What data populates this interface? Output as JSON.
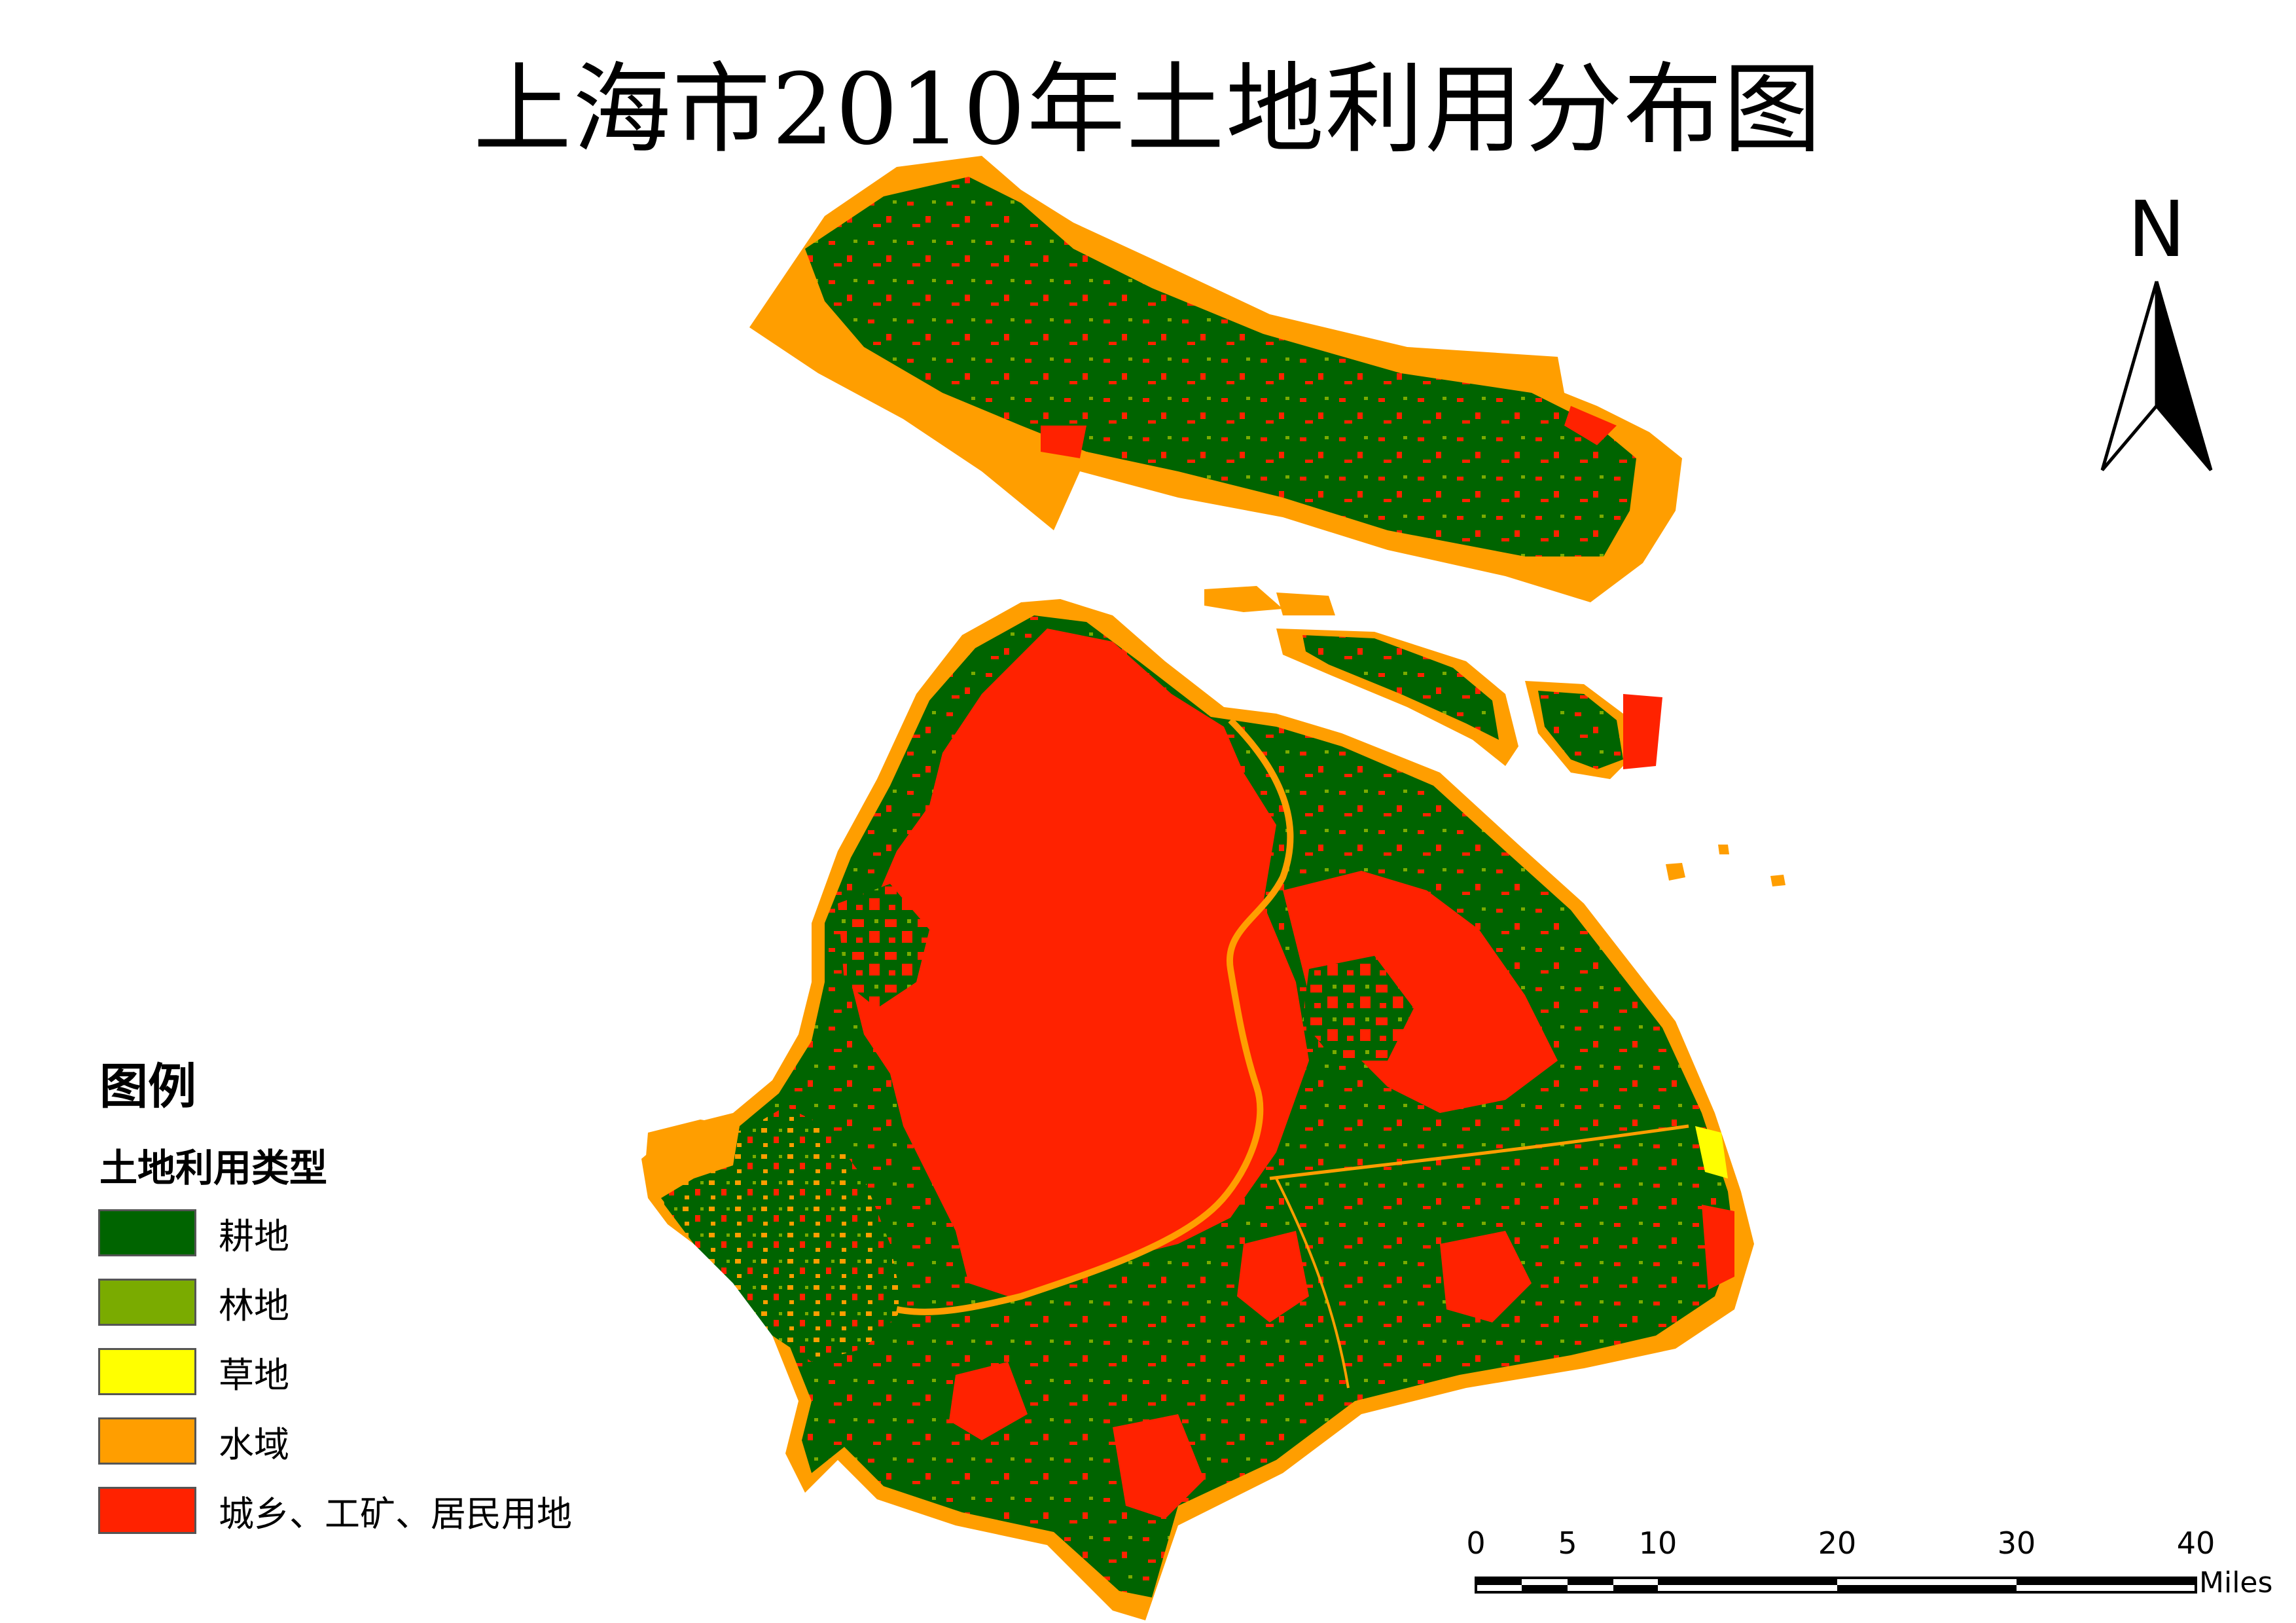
{
  "title": "上海市2010年土地利用分布图",
  "legend": {
    "heading": "图例",
    "subheading": "土地利用类型",
    "items": [
      {
        "label": "耕地",
        "color": "#006400"
      },
      {
        "label": "林地",
        "color": "#7aab00"
      },
      {
        "label": "草地",
        "color": "#ffff00"
      },
      {
        "label": "水域",
        "color": "#ff9e00"
      },
      {
        "label": "城乡、工矿、居民用地",
        "color": "#ff2200"
      }
    ]
  },
  "north_arrow": {
    "label": "N"
  },
  "scale_bar": {
    "ticks": [
      "0",
      "5",
      "10",
      "20",
      "30",
      "40"
    ],
    "unit": "Miles"
  }
}
